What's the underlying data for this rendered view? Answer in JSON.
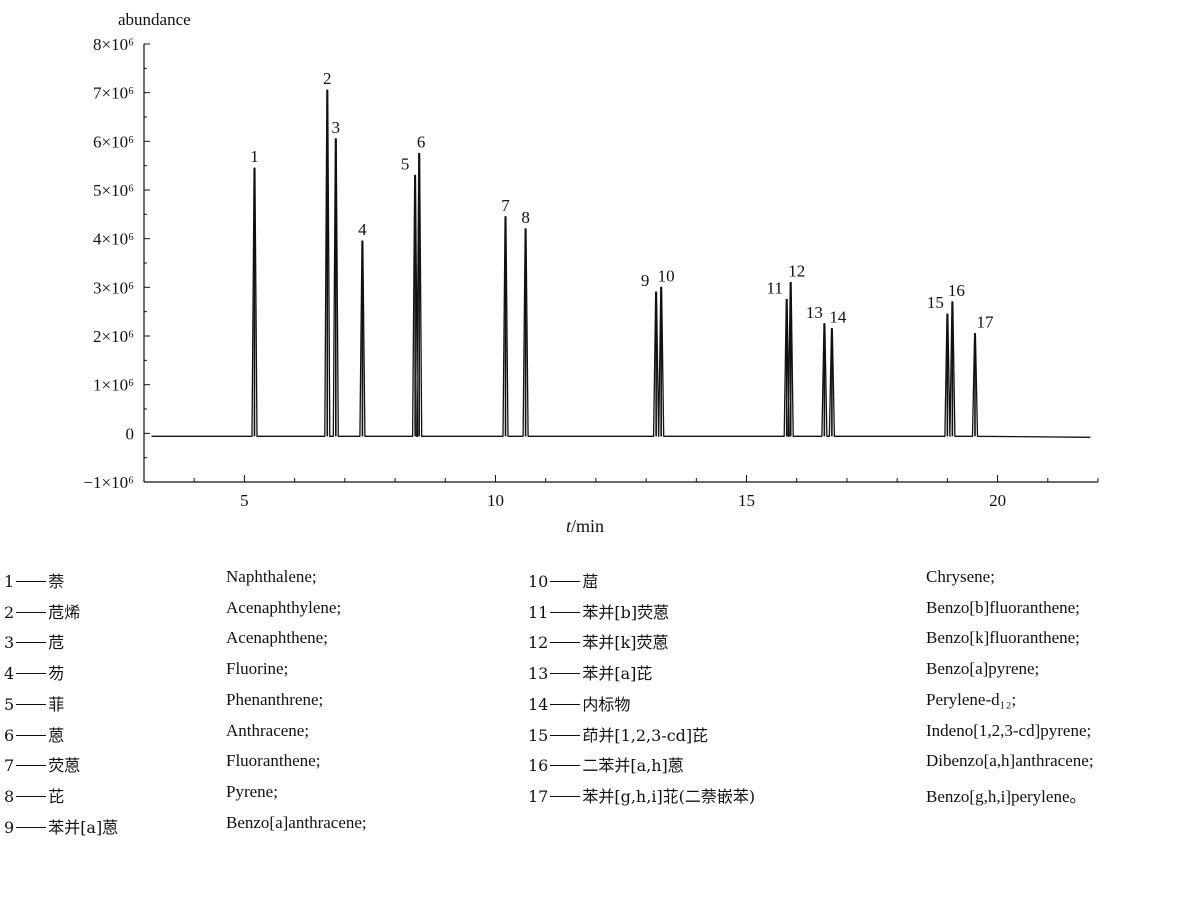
{
  "chart_data": {
    "type": "line",
    "ylabel": "abundance",
    "xlabel": "t/min",
    "xlim": [
      3.0,
      22.0
    ],
    "ylim": [
      -1000000,
      8000000
    ],
    "x_ticks": [
      5,
      10,
      15,
      20
    ],
    "y_ticks": [
      {
        "value": 8000000,
        "label": "8×10⁶"
      },
      {
        "value": 7000000,
        "label": "7×10⁶"
      },
      {
        "value": 6000000,
        "label": "6×10⁶"
      },
      {
        "value": 5000000,
        "label": "5×10⁶"
      },
      {
        "value": 4000000,
        "label": "4×10⁶"
      },
      {
        "value": 3000000,
        "label": "3×10⁶"
      },
      {
        "value": 2000000,
        "label": "2×10⁶"
      },
      {
        "value": 1000000,
        "label": "1×10⁶"
      },
      {
        "value": 0,
        "label": "0"
      },
      {
        "value": -1000000,
        "label": "−1×10⁶"
      }
    ],
    "baseline": 0,
    "trace_start": 3.15,
    "trace_end": 21.85,
    "grid": false,
    "peaks": [
      {
        "label": "1",
        "t": 5.2,
        "height": 5450000
      },
      {
        "label": "2",
        "t": 6.65,
        "height": 7050000
      },
      {
        "label": "3",
        "t": 6.82,
        "height": 6050000
      },
      {
        "label": "4",
        "t": 7.35,
        "height": 3950000
      },
      {
        "label": "5",
        "t": 8.4,
        "height": 5300000
      },
      {
        "label": "6",
        "t": 8.48,
        "height": 5750000
      },
      {
        "label": "7",
        "t": 10.2,
        "height": 4450000
      },
      {
        "label": "8",
        "t": 10.6,
        "height": 4200000
      },
      {
        "label": "9",
        "t": 13.2,
        "height": 2900000
      },
      {
        "label": "10",
        "t": 13.3,
        "height": 3000000
      },
      {
        "label": "11",
        "t": 15.8,
        "height": 2750000
      },
      {
        "label": "12",
        "t": 15.88,
        "height": 3100000
      },
      {
        "label": "13",
        "t": 16.55,
        "height": 2250000
      },
      {
        "label": "14",
        "t": 16.7,
        "height": 2150000
      },
      {
        "label": "15",
        "t": 19.0,
        "height": 2450000
      },
      {
        "label": "16",
        "t": 19.1,
        "height": 2700000
      },
      {
        "label": "17",
        "t": 19.55,
        "height": 2050000
      }
    ]
  },
  "legend": {
    "left": [
      {
        "num": "1",
        "cn": "萘",
        "en": "Naphthalene;"
      },
      {
        "num": "2",
        "cn": "苊烯",
        "en": "Acenaphthylene;"
      },
      {
        "num": "3",
        "cn": "苊",
        "en": "Acenaphthene;"
      },
      {
        "num": "4",
        "cn": "芴",
        "en": "Fluorine;"
      },
      {
        "num": "5",
        "cn": "菲",
        "en": "Phenanthrene;"
      },
      {
        "num": "6",
        "cn": "蒽",
        "en": "Anthracene;"
      },
      {
        "num": "7",
        "cn": "荧蒽",
        "en": "Fluoranthene;"
      },
      {
        "num": "8",
        "cn": "芘",
        "en": "Pyrene;"
      },
      {
        "num": "9",
        "cn": "苯并[a]蒽",
        "en": "Benzo[a]anthracene;"
      }
    ],
    "right": [
      {
        "num": "10",
        "cn": "䓛",
        "en": "Chrysene;"
      },
      {
        "num": "11",
        "cn": "苯并[b]荧蒽",
        "en": "Benzo[b]fluoranthene;"
      },
      {
        "num": "12",
        "cn": "苯并[k]荧蒽",
        "en": "Benzo[k]fluoranthene;"
      },
      {
        "num": "13",
        "cn": "苯并[a]芘",
        "en": "Benzo[a]pyrene;"
      },
      {
        "num": "14",
        "cn": "内标物",
        "en": "Perylene-d₁₂;"
      },
      {
        "num": "15",
        "cn": "茚并[1,2,3-cd]芘",
        "en": "Indeno[1,2,3-cd]pyrene;"
      },
      {
        "num": "16",
        "cn": "二苯并[a,h]蒽",
        "en": "Dibenzo[a,h]anthracene;"
      },
      {
        "num": "17",
        "cn": "苯并[g,h,i]苝(二萘嵌苯)",
        "en": "Benzo[g,h,i]perylene。"
      }
    ]
  }
}
